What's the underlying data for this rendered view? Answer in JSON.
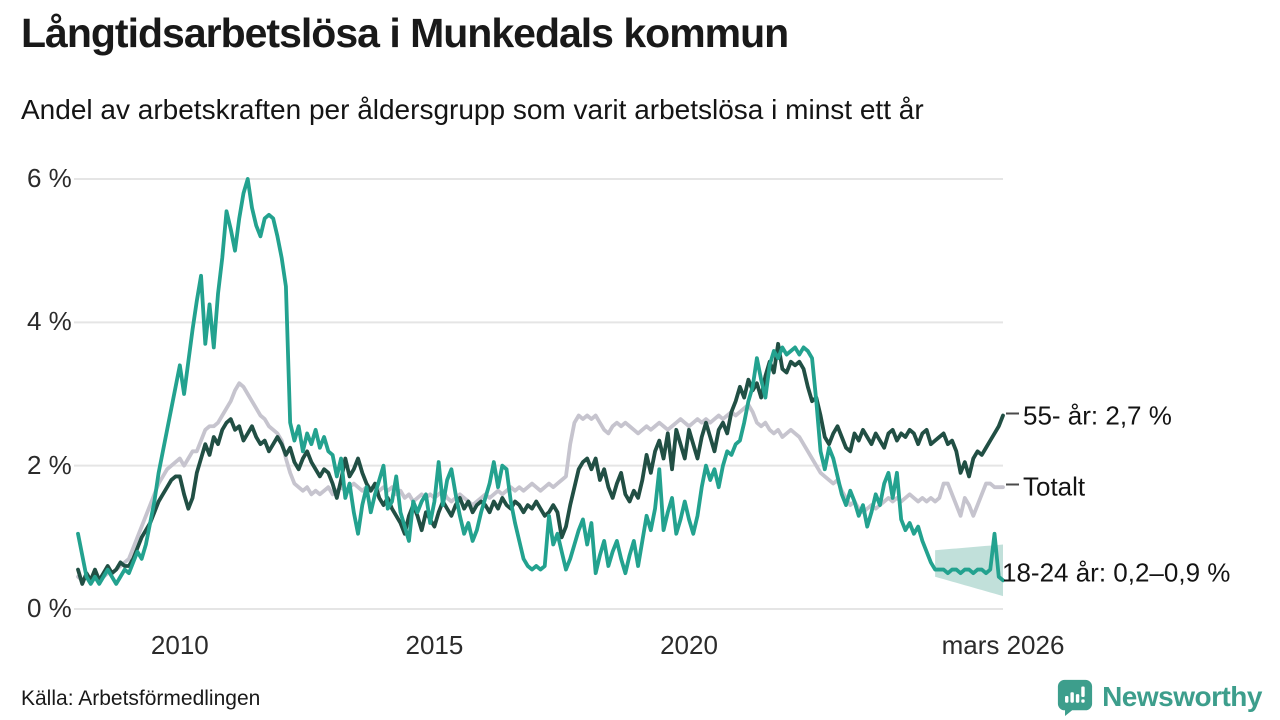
{
  "header": {
    "title": "Långtidsarbetslösa i Munkedals kommun",
    "subtitle": "Andel av arbetskraften per åldersgrupp som varit arbetslösa i minst ett år"
  },
  "footer": {
    "source": "Källa: Arbetsförmedlingen",
    "brand": "Newsworthy"
  },
  "colors": {
    "teal": "#23a28f",
    "dark_green": "#214f44",
    "total_gray": "#c6c4ce",
    "grid": "#e5e5e5",
    "band_fill": "rgba(61,158,140,0.32)",
    "brand_teal": "#3d9e8c",
    "text": "#1a1a1a"
  },
  "chart_data": {
    "type": "line",
    "title": "Långtidsarbetslösa i Munkedals kommun",
    "subtitle": "Andel av arbetskraften per åldersgrupp som varit arbetslösa i minst ett år",
    "x_start": "2008-01",
    "x_end": "2026-03",
    "frequency": "monthly",
    "unit": "%",
    "ylim": [
      0,
      6
    ],
    "grid": true,
    "yticks": [
      {
        "label": "0 %",
        "value": 0
      },
      {
        "label": "2 %",
        "value": 2
      },
      {
        "label": "4 %",
        "value": 4
      },
      {
        "label": "6 %",
        "value": 6
      }
    ],
    "xticks": [
      {
        "label": "2010",
        "index": 24
      },
      {
        "label": "2015",
        "index": 84
      },
      {
        "label": "2020",
        "index": 144
      },
      {
        "label": "mars 2026",
        "index": 218
      }
    ],
    "series": [
      {
        "name": "Totalt",
        "end_label": "Totalt",
        "label_value": 1.7,
        "dash": true,
        "color": "#c6c4ce",
        "values": [
          0.45,
          0.4,
          0.45,
          0.4,
          0.45,
          0.4,
          0.45,
          0.5,
          0.5,
          0.55,
          0.6,
          0.65,
          0.7,
          0.85,
          1.0,
          1.15,
          1.3,
          1.45,
          1.6,
          1.75,
          1.85,
          1.95,
          2.0,
          2.05,
          2.1,
          2.0,
          2.1,
          2.2,
          2.2,
          2.35,
          2.5,
          2.55,
          2.55,
          2.6,
          2.7,
          2.8,
          2.9,
          3.05,
          3.15,
          3.1,
          3.0,
          2.9,
          2.8,
          2.7,
          2.65,
          2.55,
          2.5,
          2.45,
          2.35,
          2.1,
          1.9,
          1.75,
          1.7,
          1.65,
          1.7,
          1.6,
          1.65,
          1.6,
          1.65,
          1.7,
          1.6,
          1.65,
          1.7,
          1.65,
          1.7,
          1.75,
          1.7,
          1.65,
          1.7,
          1.65,
          1.7,
          1.65,
          1.7,
          1.65,
          1.7,
          1.6,
          1.65,
          1.55,
          1.6,
          1.5,
          1.55,
          1.6,
          1.55,
          1.6,
          1.55,
          1.6,
          1.65,
          1.55,
          1.5,
          1.55,
          1.6,
          1.55,
          1.5,
          1.45,
          1.5,
          1.55,
          1.6,
          1.55,
          1.6,
          1.65,
          1.6,
          1.65,
          1.7,
          1.65,
          1.7,
          1.65,
          1.7,
          1.75,
          1.7,
          1.65,
          1.7,
          1.75,
          1.7,
          1.75,
          1.8,
          1.85,
          2.3,
          2.6,
          2.7,
          2.65,
          2.7,
          2.65,
          2.7,
          2.6,
          2.5,
          2.45,
          2.55,
          2.6,
          2.55,
          2.6,
          2.55,
          2.5,
          2.45,
          2.5,
          2.55,
          2.5,
          2.55,
          2.6,
          2.55,
          2.5,
          2.55,
          2.6,
          2.65,
          2.6,
          2.55,
          2.6,
          2.65,
          2.6,
          2.65,
          2.6,
          2.65,
          2.7,
          2.65,
          2.7,
          2.75,
          2.7,
          2.75,
          2.8,
          2.85,
          2.75,
          2.6,
          2.55,
          2.6,
          2.5,
          2.45,
          2.5,
          2.4,
          2.45,
          2.5,
          2.45,
          2.4,
          2.3,
          2.2,
          2.1,
          2.0,
          1.9,
          1.85,
          1.8,
          1.75,
          1.8,
          1.65,
          1.55,
          1.45,
          1.5,
          1.4,
          1.35,
          1.4,
          1.45,
          1.4,
          1.45,
          1.5,
          1.55,
          1.5,
          1.55,
          1.5,
          1.55,
          1.6,
          1.55,
          1.5,
          1.55,
          1.5,
          1.55,
          1.5,
          1.55,
          1.75,
          1.75,
          1.6,
          1.45,
          1.3,
          1.55,
          1.45,
          1.3,
          1.45,
          1.6,
          1.75,
          1.75,
          1.7,
          1.7,
          1.7
        ]
      },
      {
        "name": "55- år",
        "end_label": "55- år: 2,7 %",
        "label_value": 2.7,
        "dash": true,
        "color": "#214f44",
        "values": [
          0.55,
          0.35,
          0.5,
          0.4,
          0.55,
          0.4,
          0.5,
          0.6,
          0.5,
          0.55,
          0.65,
          0.6,
          0.6,
          0.7,
          0.85,
          1.0,
          1.1,
          1.2,
          1.35,
          1.5,
          1.6,
          1.7,
          1.8,
          1.85,
          1.85,
          1.6,
          1.4,
          1.55,
          1.9,
          2.1,
          2.3,
          2.15,
          2.4,
          2.3,
          2.5,
          2.6,
          2.65,
          2.5,
          2.55,
          2.35,
          2.45,
          2.55,
          2.4,
          2.3,
          2.35,
          2.2,
          2.3,
          2.4,
          2.3,
          2.15,
          2.25,
          2.05,
          1.95,
          2.1,
          2.2,
          2.05,
          1.95,
          1.85,
          1.95,
          1.9,
          1.75,
          1.55,
          1.8,
          2.1,
          1.85,
          1.95,
          2.1,
          1.9,
          1.75,
          1.65,
          1.75,
          1.55,
          1.45,
          1.55,
          1.4,
          1.3,
          1.2,
          1.05,
          1.3,
          1.45,
          1.3,
          1.1,
          1.35,
          1.25,
          1.15,
          1.35,
          1.5,
          1.4,
          1.3,
          1.45,
          1.55,
          1.4,
          1.5,
          1.35,
          1.45,
          1.5,
          1.45,
          1.35,
          1.5,
          1.4,
          1.55,
          1.45,
          1.4,
          1.5,
          1.45,
          1.35,
          1.45,
          1.4,
          1.5,
          1.4,
          1.3,
          1.35,
          1.45,
          1.35,
          1.0,
          1.15,
          1.45,
          1.7,
          1.95,
          2.05,
          2.1,
          1.95,
          2.1,
          1.8,
          1.95,
          1.7,
          1.55,
          1.75,
          1.9,
          1.6,
          1.5,
          1.65,
          1.55,
          1.8,
          2.15,
          1.9,
          2.2,
          2.35,
          2.1,
          2.45,
          1.95,
          2.5,
          2.3,
          2.1,
          2.5,
          2.3,
          2.1,
          2.4,
          2.6,
          2.4,
          2.2,
          2.5,
          2.6,
          2.45,
          2.75,
          2.9,
          3.1,
          2.95,
          3.2,
          3.05,
          3.15,
          2.95,
          3.25,
          3.45,
          3.3,
          3.7,
          3.35,
          3.3,
          3.45,
          3.4,
          3.45,
          3.35,
          3.1,
          2.9,
          2.95,
          2.7,
          2.4,
          2.3,
          2.45,
          2.55,
          2.4,
          2.25,
          2.2,
          2.45,
          2.35,
          2.5,
          2.4,
          2.3,
          2.45,
          2.35,
          2.25,
          2.45,
          2.5,
          2.35,
          2.45,
          2.4,
          2.5,
          2.45,
          2.3,
          2.45,
          2.5,
          2.3,
          2.35,
          2.4,
          2.45,
          2.3,
          2.35,
          2.2,
          1.9,
          2.05,
          1.85,
          2.1,
          2.2,
          2.15,
          2.25,
          2.35,
          2.45,
          2.55,
          2.7
        ]
      },
      {
        "name": "18-24 år",
        "end_label": "18-24 år: 0,2–0,9 %",
        "label_value": 0.5,
        "dash": false,
        "color": "#23a28f",
        "band": {
          "start_index": 202,
          "lower_start": 0.45,
          "lower_end": 0.18,
          "upper_start": 0.82,
          "upper_end": 0.9
        },
        "values": [
          1.05,
          0.75,
          0.45,
          0.35,
          0.45,
          0.35,
          0.45,
          0.55,
          0.45,
          0.35,
          0.45,
          0.55,
          0.5,
          0.65,
          0.8,
          0.7,
          0.9,
          1.2,
          1.5,
          1.9,
          2.2,
          2.5,
          2.8,
          3.1,
          3.4,
          3.0,
          3.45,
          3.9,
          4.3,
          4.65,
          3.7,
          4.25,
          3.65,
          4.4,
          4.9,
          5.55,
          5.3,
          5.0,
          5.45,
          5.8,
          6.0,
          5.6,
          5.35,
          5.2,
          5.45,
          5.5,
          5.45,
          5.2,
          4.9,
          4.5,
          2.6,
          2.35,
          2.55,
          2.2,
          2.45,
          2.3,
          2.5,
          2.25,
          2.4,
          2.2,
          2.15,
          1.85,
          2.1,
          1.55,
          1.75,
          1.35,
          1.05,
          1.45,
          1.7,
          1.35,
          1.6,
          1.8,
          2.0,
          1.4,
          1.5,
          1.85,
          1.35,
          1.15,
          0.95,
          1.5,
          1.35,
          1.5,
          1.6,
          1.2,
          1.5,
          2.05,
          1.45,
          1.8,
          1.95,
          1.6,
          1.3,
          1.05,
          1.2,
          0.95,
          1.1,
          1.35,
          1.55,
          1.75,
          2.05,
          1.7,
          2.0,
          1.95,
          1.5,
          1.2,
          0.95,
          0.7,
          0.6,
          0.55,
          0.6,
          0.55,
          0.6,
          1.3,
          0.9,
          1.05,
          0.8,
          0.55,
          0.7,
          0.9,
          1.1,
          1.25,
          0.9,
          1.2,
          0.5,
          0.75,
          0.95,
          0.6,
          0.8,
          0.95,
          0.7,
          0.5,
          0.75,
          0.95,
          0.6,
          0.95,
          1.3,
          1.1,
          1.4,
          1.95,
          1.1,
          1.35,
          1.55,
          1.05,
          1.25,
          1.5,
          1.25,
          1.05,
          1.3,
          1.7,
          2.0,
          1.8,
          1.95,
          1.7,
          2.0,
          2.2,
          2.15,
          2.3,
          2.35,
          2.6,
          2.9,
          3.1,
          3.5,
          3.2,
          2.95,
          3.4,
          3.6,
          3.5,
          3.65,
          3.55,
          3.6,
          3.65,
          3.55,
          3.65,
          3.6,
          3.5,
          2.9,
          2.2,
          1.95,
          2.25,
          2.1,
          1.85,
          1.6,
          1.45,
          1.65,
          1.5,
          1.3,
          1.45,
          1.15,
          1.35,
          1.6,
          1.45,
          1.75,
          1.9,
          1.55,
          1.9,
          1.25,
          1.1,
          1.2,
          1.05,
          1.15,
          0.95,
          0.8,
          0.65,
          0.55,
          0.55,
          0.55,
          0.5,
          0.55,
          0.55,
          0.5,
          0.55,
          0.55,
          0.5,
          0.55,
          0.55,
          0.5,
          0.55,
          1.05,
          0.45,
          0.4
        ]
      }
    ]
  }
}
